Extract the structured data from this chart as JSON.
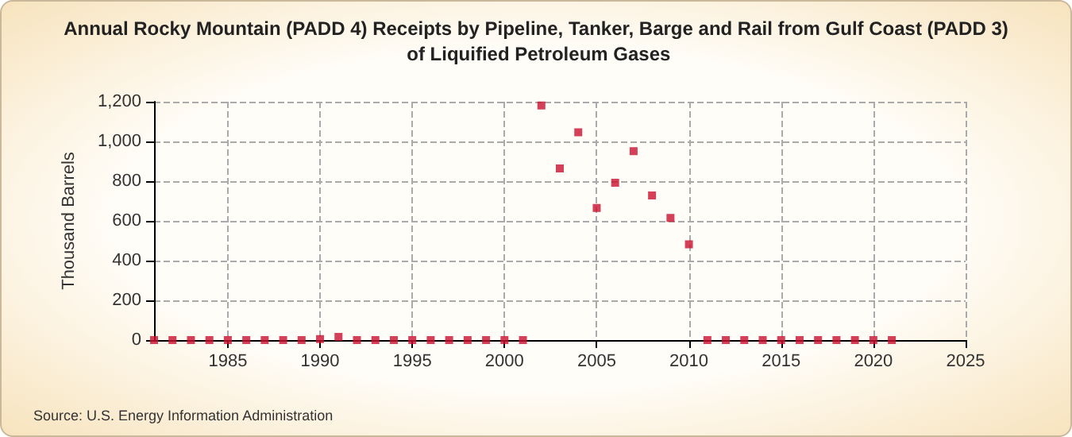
{
  "chart_data": {
    "type": "scatter",
    "title": "Annual Rocky Mountain (PADD 4) Receipts by Pipeline, Tanker, Barge and Rail from Gulf Coast (PADD 3) of Liquified Petroleum Gases",
    "ylabel": "Thousand Barrels",
    "x": [
      1981,
      1982,
      1983,
      1984,
      1985,
      1986,
      1987,
      1988,
      1989,
      1990,
      1991,
      1992,
      1993,
      1994,
      1995,
      1996,
      1997,
      1998,
      1999,
      2000,
      2001,
      2002,
      2003,
      2004,
      2005,
      2006,
      2007,
      2008,
      2009,
      2010,
      2011,
      2012,
      2013,
      2014,
      2015,
      2016,
      2017,
      2018,
      2019,
      2020,
      2021
    ],
    "values": [
      0,
      0,
      0,
      0,
      0,
      0,
      0,
      0,
      0,
      5,
      16,
      0,
      0,
      0,
      0,
      0,
      0,
      0,
      0,
      0,
      0,
      1181,
      864,
      1046,
      665,
      792,
      951,
      728,
      615,
      482,
      0,
      0,
      0,
      0,
      0,
      0,
      0,
      0,
      0,
      0,
      0
    ],
    "color": "#c8102e",
    "marker": "square",
    "xlim": [
      1981,
      2025
    ],
    "xticks": [
      1985,
      1990,
      1995,
      2000,
      2005,
      2010,
      2015,
      2020,
      2025
    ],
    "ylim": [
      0,
      1200
    ],
    "yticks": [
      0,
      200,
      400,
      600,
      800,
      {
        "value": 1000,
        "label": "1,000"
      },
      {
        "value": 1200,
        "label": "1,200"
      }
    ],
    "grid": true,
    "annotations": [
      "Source: U.S. Energy Information Administration"
    ]
  }
}
